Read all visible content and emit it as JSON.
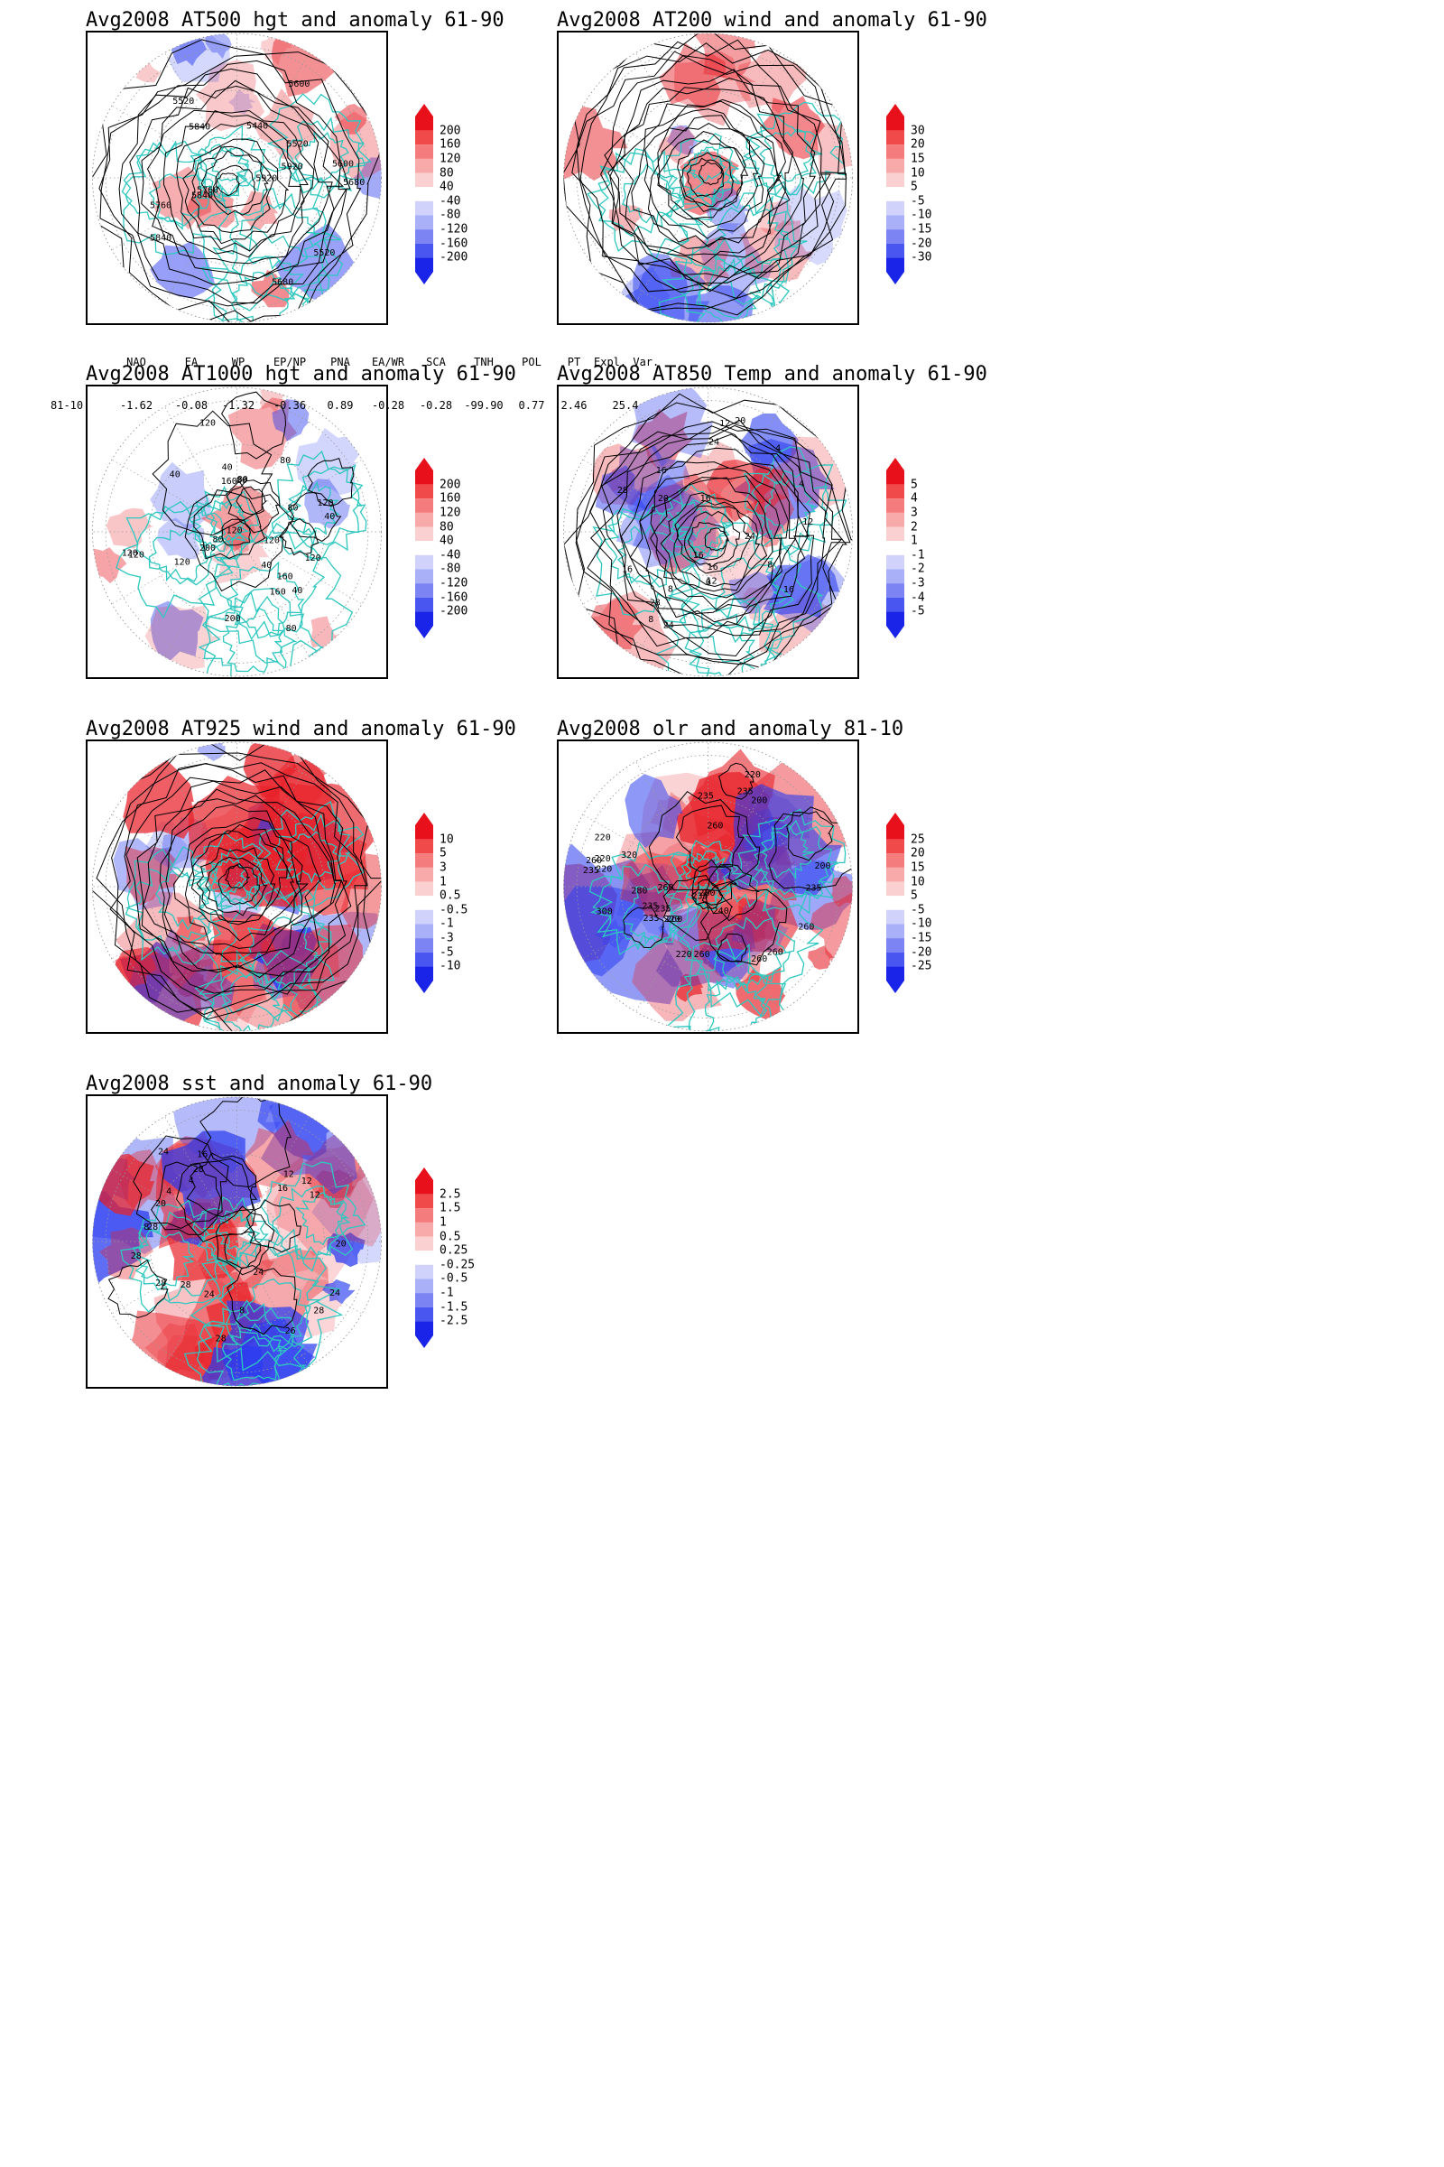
{
  "panels": [
    {
      "id": "at500",
      "title": "Avg2008 AT500 hgt and anomaly 61-90",
      "contour_labels": [
        "5840",
        "5760",
        "5680",
        "5600",
        "5520",
        "5520",
        "5440",
        "5520",
        "5600",
        "5680",
        "5760",
        "5840",
        "5920",
        "5920",
        "5840"
      ],
      "colorbar": [
        "200",
        "160",
        "120",
        "80",
        "40",
        "-40",
        "-80",
        "-120",
        "-160",
        "-200"
      ]
    },
    {
      "id": "at200",
      "title": "Avg2008 AT200 wind and anomaly 61-90",
      "contour_labels": [],
      "colorbar": [
        "30",
        "20",
        "15",
        "10",
        "5",
        "-5",
        "-10",
        "-15",
        "-20",
        "-30"
      ]
    },
    {
      "id": "at1000",
      "title": "Avg2008 AT1000 hgt and anomaly 61-90",
      "contour_labels": [
        "120",
        "200",
        "160",
        "120",
        "80",
        "160",
        "120",
        "120",
        "160",
        "200",
        "120",
        "80",
        "40",
        "40",
        "120",
        "40",
        "120",
        "80",
        "40",
        "80",
        "120",
        "80",
        "80",
        "40"
      ],
      "colorbar": [
        "200",
        "160",
        "120",
        "80",
        "40",
        "-40",
        "-80",
        "-120",
        "-160",
        "-200"
      ]
    },
    {
      "id": "at850",
      "title": "Avg2008 AT850 Temp and anomaly 61-90",
      "contour_labels": [
        "16",
        "16",
        "12",
        "8",
        "4",
        "24",
        "20",
        "16",
        "12",
        "8",
        "4",
        "0",
        "28",
        "8",
        "12",
        "16",
        "20",
        "24",
        "28",
        "16",
        "24",
        "16"
      ],
      "colorbar": [
        "5",
        "4",
        "3",
        "2",
        "1",
        "-1",
        "-2",
        "-3",
        "-4",
        "-5"
      ]
    },
    {
      "id": "at925",
      "title": "Avg2008 AT925 wind and anomaly 61-90",
      "contour_labels": [],
      "colorbar": [
        "10",
        "5",
        "3",
        "1",
        "0.5",
        "-0.5",
        "-1",
        "-3",
        "-5",
        "-10"
      ]
    },
    {
      "id": "olr",
      "title": "Avg2008 olr and anomaly 81-10",
      "contour_labels": [
        "260",
        "235",
        "280",
        "240",
        "235",
        "260",
        "220",
        "220",
        "260",
        "235",
        "200",
        "235",
        "260",
        "220",
        "260",
        "280",
        "235",
        "260",
        "220",
        "235",
        "300",
        "260",
        "320",
        "235",
        "260",
        "200",
        "220",
        "235",
        "220"
      ],
      "colorbar": [
        "25",
        "20",
        "15",
        "10",
        "5",
        "-5",
        "-10",
        "-15",
        "-20",
        "-25"
      ]
    },
    {
      "id": "sst",
      "title": "Avg2008 sst and anomaly 61-90",
      "contour_labels": [
        "26",
        "28",
        "24",
        "28",
        "24",
        "20",
        "16",
        "12",
        "12",
        "8",
        "4",
        "28",
        "16",
        "12",
        "8",
        "4",
        "24",
        "20",
        "28",
        "28",
        "24",
        "28",
        "28"
      ],
      "colorbar": [
        "2.5",
        "1.5",
        "1",
        "0.5",
        "0.25",
        "-0.25",
        "-0.5",
        "-1",
        "-1.5",
        "-2.5"
      ]
    }
  ],
  "indices": {
    "headers": [
      "NAO",
      "EA",
      "WP",
      "EP/NP",
      "PNA",
      "EA/WR",
      "SCA",
      "TNH",
      "POL",
      "PT",
      "Expl. Var."
    ],
    "row_label": "81-10:",
    "values": [
      "-1.62",
      "-0.08",
      "-1.32",
      "-0.36",
      "0.89",
      "-0.28",
      "-0.28",
      "-99.90",
      "0.77",
      "2.46",
      "25.4"
    ]
  },
  "colors": {
    "coast": "#2ec8c0",
    "positive": "#e8222a",
    "negative": "#2a3cf0",
    "contour": "#000000",
    "grid": "#9a9a9a"
  }
}
